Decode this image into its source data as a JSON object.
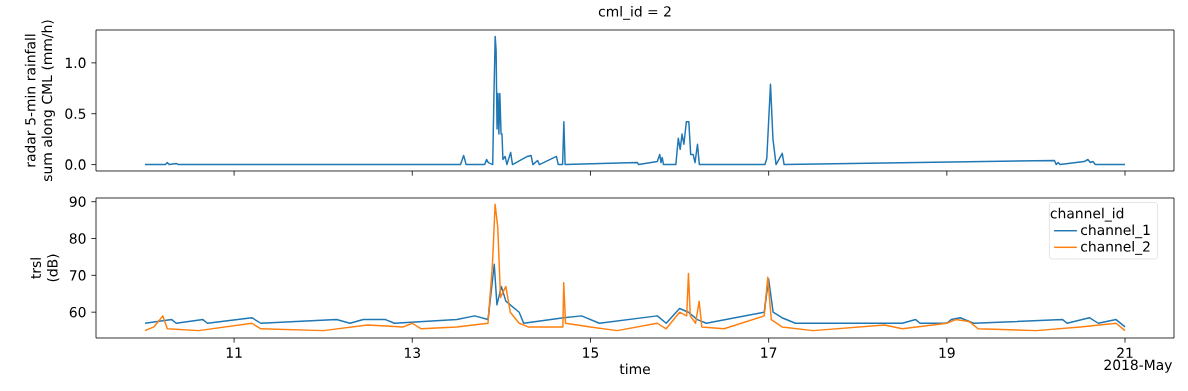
{
  "chart_data": [
    {
      "type": "line",
      "title": "cml_id = 2",
      "ylabel": "radar 5-min rainfall sum along CML (mm/h)",
      "color": "#1f77b4",
      "line_style": "solid",
      "tick_labels": "y",
      "xlim": [
        "2018-05-09T10:48",
        "2018-05-21T13:12"
      ],
      "xticks": [
        {
          "value": "2018-05-11",
          "label": null
        },
        {
          "value": "2018-05-13",
          "label": null
        },
        {
          "value": "2018-05-15",
          "label": null
        },
        {
          "value": "2018-05-17",
          "label": null
        },
        {
          "value": "2018-05-19",
          "label": null
        },
        {
          "value": "2018-05-21",
          "label": null
        }
      ],
      "ylim": [
        -0.063,
        1.323
      ],
      "yticks": [
        {
          "value": 0,
          "label": "0.0"
        },
        {
          "value": 0.5,
          "label": "0.5"
        },
        {
          "value": 1,
          "label": "1.0"
        }
      ],
      "x": [
        "2018-05-10T00:00",
        "2018-05-10T05:30",
        "2018-05-10T06:00",
        "2018-05-10T06:30",
        "2018-05-10T08:30",
        "2018-05-10T09:00",
        "2018-05-13T13:00",
        "2018-05-13T13:50",
        "2018-05-13T14:30",
        "2018-05-13T19:30",
        "2018-05-13T20:00",
        "2018-05-13T20:30",
        "2018-05-13T21:40",
        "2018-05-13T22:00",
        "2018-05-13T22:20",
        "2018-05-13T22:35",
        "2018-05-13T22:50",
        "2018-05-13T23:05",
        "2018-05-13T23:20",
        "2018-05-13T23:35",
        "2018-05-13T23:55",
        "2018-05-14T00:10",
        "2018-05-14T00:25",
        "2018-05-14T01:00",
        "2018-05-14T01:30",
        "2018-05-14T02:30",
        "2018-05-14T03:00",
        "2018-05-14T07:00",
        "2018-05-14T08:00",
        "2018-05-14T08:30",
        "2018-05-14T09:45",
        "2018-05-14T10:15",
        "2018-05-14T14:50",
        "2018-05-14T15:20",
        "2018-05-14T16:30",
        "2018-05-14T16:50",
        "2018-05-14T17:10",
        "2018-05-15T12:36",
        "2018-05-15T13:00",
        "2018-05-15T18:00",
        "2018-05-15T18:40",
        "2018-05-15T19:00",
        "2018-05-15T19:20",
        "2018-05-15T19:40",
        "2018-05-15T23:00",
        "2018-05-15T23:40",
        "2018-05-16T00:10",
        "2018-05-16T00:40",
        "2018-05-16T01:10",
        "2018-05-16T01:50",
        "2018-05-16T02:30",
        "2018-05-16T03:00",
        "2018-05-16T03:40",
        "2018-05-16T04:10",
        "2018-05-16T04:50",
        "2018-05-16T05:20",
        "2018-05-16T23:00",
        "2018-05-16T23:30",
        "2018-05-17T00:30",
        "2018-05-17T01:10",
        "2018-05-17T02:00",
        "2018-05-17T03:40",
        "2018-05-17T04:10",
        "2018-05-20T05:00",
        "2018-05-20T05:30",
        "2018-05-20T06:00",
        "2018-05-20T06:30",
        "2018-05-20T13:00",
        "2018-05-20T14:00",
        "2018-05-20T14:40",
        "2018-05-20T15:20",
        "2018-05-20T16:00",
        "2018-05-21T00:00"
      ],
      "values": [
        0,
        0,
        0.02,
        0,
        0.01,
        0,
        0,
        0.09,
        0,
        0,
        0.05,
        0.02,
        0,
        0.68,
        1.26,
        1.12,
        0.35,
        0.7,
        0.3,
        0.7,
        0.3,
        0.3,
        0.05,
        0.08,
        0,
        0.12,
        0,
        0.08,
        0.09,
        0,
        0.04,
        0,
        0.08,
        0,
        0,
        0.42,
        0,
        0.02,
        0,
        0.03,
        0.1,
        0.02,
        0.07,
        0,
        0,
        0.26,
        0.15,
        0.3,
        0.2,
        0.42,
        0.42,
        0.1,
        0.1,
        0.02,
        0.2,
        0,
        0,
        0.06,
        0.79,
        0.25,
        0,
        0.11,
        0,
        0.04,
        0,
        0.02,
        0,
        0.03,
        0.05,
        0.02,
        0.03,
        0,
        0
      ]
    },
    {
      "type": "line",
      "xlabel": "time",
      "ylabel": "trsl (dB)",
      "legend_title": "channel_id",
      "legend": "top right",
      "line_style": "solid",
      "annotations": [
        "2018-May"
      ],
      "xlim": [
        "2018-05-09T10:48",
        "2018-05-21T13:12"
      ],
      "xticks": [
        {
          "value": "2018-05-11",
          "label": "11"
        },
        {
          "value": "2018-05-13",
          "label": "13"
        },
        {
          "value": "2018-05-15",
          "label": "15"
        },
        {
          "value": "2018-05-17",
          "label": "17"
        },
        {
          "value": "2018-05-19",
          "label": "19"
        },
        {
          "value": "2018-05-21",
          "label": "21"
        }
      ],
      "ylim": [
        53,
        91
      ],
      "yticks": [
        60,
        70,
        80,
        90
      ],
      "series": [
        {
          "name": "channel_1",
          "color": "#1f77b4",
          "x": [
            "2018-05-10T00:00",
            "2018-05-10T07:12",
            "2018-05-10T08:24",
            "2018-05-10T15:36",
            "2018-05-10T16:48",
            "2018-05-11T04:48",
            "2018-05-11T07:12",
            "2018-05-12T03:36",
            "2018-05-12T07:12",
            "2018-05-12T10:48",
            "2018-05-12T16:48",
            "2018-05-12T19:12",
            "2018-05-13T12:00",
            "2018-05-13T16:48",
            "2018-05-13T20:24",
            "2018-05-13T22:05",
            "2018-05-13T22:48",
            "2018-05-14T00:00",
            "2018-05-14T01:12",
            "2018-05-14T02:24",
            "2018-05-14T04:48",
            "2018-05-14T06:00",
            "2018-05-14T16:48",
            "2018-05-14T21:36",
            "2018-05-15T00:00",
            "2018-05-15T02:24",
            "2018-05-15T18:00",
            "2018-05-15T20:24",
            "2018-05-16T00:00",
            "2018-05-16T02:24",
            "2018-05-16T04:48",
            "2018-05-16T07:12",
            "2018-05-16T22:48",
            "2018-05-17T00:00",
            "2018-05-17T01:12",
            "2018-05-17T03:36",
            "2018-05-17T07:12",
            "2018-05-18T12:00",
            "2018-05-18T15:36",
            "2018-05-18T16:48",
            "2018-05-19T00:00",
            "2018-05-19T01:12",
            "2018-05-19T03:36",
            "2018-05-19T07:12",
            "2018-05-20T07:12",
            "2018-05-20T08:24",
            "2018-05-20T14:24",
            "2018-05-20T16:48",
            "2018-05-20T21:36",
            "2018-05-21T00:00"
          ],
          "values": [
            57,
            58,
            57,
            58,
            57,
            58.5,
            57,
            58,
            57,
            58,
            58,
            57,
            58,
            59,
            58,
            73,
            62,
            67,
            63,
            62,
            60,
            57,
            58.5,
            59,
            58,
            57,
            59,
            57,
            61,
            60,
            58,
            57,
            60,
            69,
            60,
            58.5,
            57,
            57,
            58,
            57,
            57,
            58,
            58.5,
            57,
            58,
            57,
            58.5,
            57,
            58,
            56
          ]
        },
        {
          "name": "channel_2",
          "color": "#ff7f0e",
          "x": [
            "2018-05-10T00:00",
            "2018-05-10T02:24",
            "2018-05-10T04:48",
            "2018-05-10T06:00",
            "2018-05-10T14:24",
            "2018-05-11T04:48",
            "2018-05-11T07:12",
            "2018-05-12T00:00",
            "2018-05-12T12:00",
            "2018-05-12T21:36",
            "2018-05-13T00:00",
            "2018-05-13T02:24",
            "2018-05-13T12:00",
            "2018-05-13T20:24",
            "2018-05-13T21:36",
            "2018-05-13T22:19",
            "2018-05-13T23:02",
            "2018-05-13T23:46",
            "2018-05-14T01:12",
            "2018-05-14T02:24",
            "2018-05-14T04:48",
            "2018-05-14T07:12",
            "2018-05-14T16:34",
            "2018-05-14T16:48",
            "2018-05-14T17:17",
            "2018-05-15T00:00",
            "2018-05-15T07:12",
            "2018-05-15T18:00",
            "2018-05-15T20:24",
            "2018-05-16T00:00",
            "2018-05-16T01:55",
            "2018-05-16T02:24",
            "2018-05-16T02:53",
            "2018-05-16T04:19",
            "2018-05-16T05:17",
            "2018-05-16T06:00",
            "2018-05-16T12:00",
            "2018-05-16T22:48",
            "2018-05-16T23:46",
            "2018-05-17T00:43",
            "2018-05-17T03:36",
            "2018-05-17T12:00",
            "2018-05-18T07:12",
            "2018-05-18T12:00",
            "2018-05-19T00:00",
            "2018-05-19T02:24",
            "2018-05-19T06:00",
            "2018-05-19T08:24",
            "2018-05-20T00:00",
            "2018-05-20T12:00",
            "2018-05-20T21:36",
            "2018-05-21T00:00"
          ],
          "values": [
            55,
            56,
            59,
            55.5,
            55,
            57,
            55.5,
            55,
            56.5,
            56,
            57,
            55.5,
            56,
            57,
            73,
            89.3,
            83,
            64,
            67,
            60,
            57,
            56,
            56,
            68,
            57,
            56,
            55,
            57,
            55.5,
            60,
            59,
            70.5,
            59,
            57,
            63,
            56,
            55.5,
            59,
            69.5,
            58,
            56,
            55,
            56.5,
            55.5,
            57,
            58,
            57.5,
            55.5,
            55,
            56,
            57,
            55
          ]
        }
      ]
    }
  ]
}
